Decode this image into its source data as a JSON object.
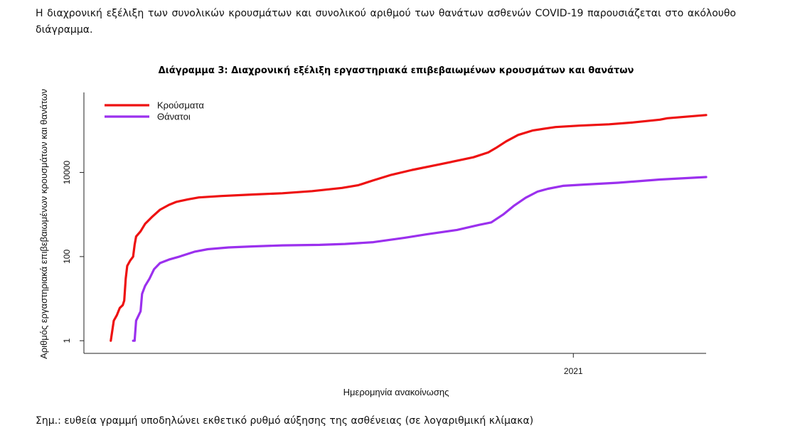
{
  "intro_text": "Η διαχρονική εξέλιξη των συνολικών κρουσμάτων και συνολικού αριθμού των θανάτων ασθενών COVID-19 παρουσιάζεται στο ακόλουθο διάγραμμα.",
  "note_text": "Σημ.: ευθεία γραμμή υποδηλώνει εκθετικό ρυθμό αύξησης της ασθένειας (σε λογαριθμική κλίμακα)",
  "chart_data": {
    "type": "line",
    "title": "Διάγραμμα 3: Διαχρονική εξέλιξη εργαστηριακά επιβεβαιωμένων κρουσμάτων και θανάτων",
    "xlabel": "Ημερομηνία ανακοίνωσης",
    "ylabel": "Αριθμός εργαστηριακά επιβεβαιωμένων κρουσμάτων και θανάτων",
    "y_scale": "log",
    "ylim": [
      0.5,
      800000
    ],
    "y_ticks": [
      1,
      100,
      10000
    ],
    "y_tick_labels": [
      "1",
      "100",
      "10000"
    ],
    "xlim": [
      "2020-02-08",
      "2021-03-31"
    ],
    "x_ticks": [
      "2021-01-01"
    ],
    "x_tick_labels": [
      "2021"
    ],
    "legend_position": "top-left",
    "grid": false,
    "series": [
      {
        "name": "Κρούσματα",
        "color": "#ee1111",
        "points": [
          [
            "2020-02-26",
            1
          ],
          [
            "2020-02-28",
            3
          ],
          [
            "2020-03-01",
            4
          ],
          [
            "2020-03-03",
            6
          ],
          [
            "2020-03-05",
            7
          ],
          [
            "2020-03-06",
            9
          ],
          [
            "2020-03-07",
            30
          ],
          [
            "2020-03-08",
            60
          ],
          [
            "2020-03-10",
            80
          ],
          [
            "2020-03-12",
            100
          ],
          [
            "2020-03-13",
            190
          ],
          [
            "2020-03-14",
            300
          ],
          [
            "2020-03-17",
            400
          ],
          [
            "2020-03-20",
            600
          ],
          [
            "2020-03-25",
            900
          ],
          [
            "2020-03-30",
            1300
          ],
          [
            "2020-04-05",
            1700
          ],
          [
            "2020-04-10",
            2000
          ],
          [
            "2020-04-18",
            2300
          ],
          [
            "2020-04-25",
            2550
          ],
          [
            "2020-05-10",
            2750
          ],
          [
            "2020-06-01",
            3000
          ],
          [
            "2020-06-20",
            3200
          ],
          [
            "2020-07-10",
            3600
          ],
          [
            "2020-07-30",
            4300
          ],
          [
            "2020-08-10",
            5000
          ],
          [
            "2020-08-20",
            6500
          ],
          [
            "2020-09-01",
            8800
          ],
          [
            "2020-09-15",
            11500
          ],
          [
            "2020-10-01",
            15000
          ],
          [
            "2020-10-15",
            19000
          ],
          [
            "2020-10-26",
            23000
          ],
          [
            "2020-11-05",
            30000
          ],
          [
            "2020-11-10",
            38000
          ],
          [
            "2020-11-17",
            55000
          ],
          [
            "2020-11-25",
            78000
          ],
          [
            "2020-12-05",
            100000
          ],
          [
            "2020-12-20",
            120000
          ],
          [
            "2021-01-05",
            130000
          ],
          [
            "2021-01-25",
            140000
          ],
          [
            "2021-02-10",
            155000
          ],
          [
            "2021-02-28",
            180000
          ],
          [
            "2021-03-05",
            195000
          ],
          [
            "2021-03-31",
            232000
          ]
        ]
      },
      {
        "name": "Θάνατοι",
        "color": "#9b30ee",
        "points": [
          [
            "2020-03-12",
            1
          ],
          [
            "2020-03-13",
            1
          ],
          [
            "2020-03-14",
            3
          ],
          [
            "2020-03-17",
            5
          ],
          [
            "2020-03-18",
            13
          ],
          [
            "2020-03-20",
            20
          ],
          [
            "2020-03-23",
            30
          ],
          [
            "2020-03-26",
            50
          ],
          [
            "2020-03-30",
            70
          ],
          [
            "2020-04-05",
            85
          ],
          [
            "2020-04-12",
            100
          ],
          [
            "2020-04-22",
            130
          ],
          [
            "2020-05-01",
            150
          ],
          [
            "2020-05-15",
            165
          ],
          [
            "2020-06-01",
            175
          ],
          [
            "2020-06-20",
            185
          ],
          [
            "2020-07-15",
            190
          ],
          [
            "2020-08-01",
            200
          ],
          [
            "2020-08-20",
            220
          ],
          [
            "2020-09-10",
            280
          ],
          [
            "2020-09-25",
            340
          ],
          [
            "2020-10-15",
            430
          ],
          [
            "2020-10-30",
            570
          ],
          [
            "2020-11-07",
            650
          ],
          [
            "2020-11-15",
            1000
          ],
          [
            "2020-11-22",
            1600
          ],
          [
            "2020-11-30",
            2500
          ],
          [
            "2020-12-08",
            3500
          ],
          [
            "2020-12-15",
            4100
          ],
          [
            "2020-12-25",
            4800
          ],
          [
            "2021-01-10",
            5200
          ],
          [
            "2021-01-31",
            5700
          ],
          [
            "2021-02-28",
            6800
          ],
          [
            "2021-03-31",
            7800
          ]
        ]
      }
    ]
  }
}
